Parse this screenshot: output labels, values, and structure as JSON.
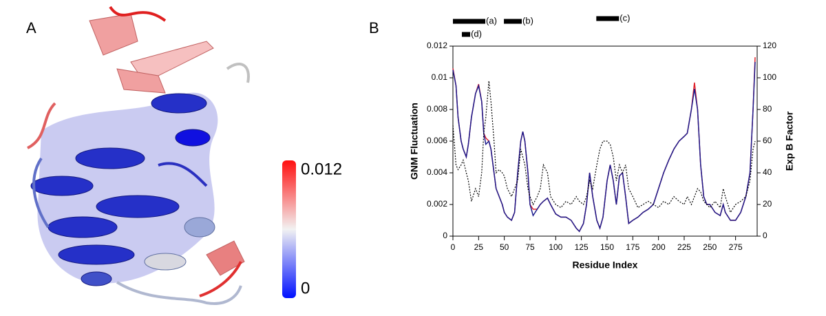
{
  "panel_a": {
    "label": "A",
    "colorbar_ticks": [
      0,
      0.012
    ]
  },
  "chart_data": {
    "type": "line",
    "panel_label": "B",
    "x_label": "Residue Index",
    "y_label": "GNM Fluctuation",
    "y2_label": "Exp B Factor",
    "xlim": [
      0,
      296
    ],
    "xticks": [
      0,
      25,
      50,
      75,
      100,
      125,
      150,
      175,
      200,
      225,
      250,
      275
    ],
    "ylim": [
      0,
      0.012
    ],
    "yticks": [
      0,
      0.002,
      0.004,
      0.006,
      0.008,
      0.01,
      0.012
    ],
    "y2lim": [
      0,
      120
    ],
    "y2ticks": [
      0,
      20,
      40,
      60,
      80,
      100,
      120
    ],
    "x": [
      0,
      3,
      5,
      8,
      10,
      13,
      15,
      18,
      22,
      25,
      28,
      30,
      32,
      35,
      37,
      40,
      42,
      45,
      48,
      50,
      53,
      57,
      60,
      63,
      66,
      68,
      70,
      73,
      75,
      78,
      82,
      85,
      88,
      92,
      95,
      100,
      105,
      110,
      115,
      120,
      123,
      127,
      130,
      133,
      136,
      140,
      143,
      146,
      150,
      153,
      156,
      159,
      162,
      165,
      168,
      171,
      175,
      180,
      185,
      190,
      195,
      200,
      205,
      210,
      215,
      220,
      225,
      228,
      232,
      235,
      238,
      241,
      244,
      247,
      250,
      255,
      260,
      263,
      265,
      270,
      275,
      280,
      285,
      289,
      292,
      294
    ],
    "series": [
      {
        "color": "#e0202a",
        "values": [
          0.0106,
          0.0095,
          0.0075,
          0.006,
          0.0055,
          0.005,
          0.0058,
          0.0075,
          0.009,
          0.0096,
          0.0085,
          0.0065,
          0.0062,
          0.006,
          0.0055,
          0.004,
          0.003,
          0.0025,
          0.002,
          0.0015,
          0.0012,
          0.001,
          0.0015,
          0.004,
          0.006,
          0.0066,
          0.006,
          0.004,
          0.002,
          0.0017,
          0.0017,
          0.002,
          0.0022,
          0.0024,
          0.002,
          0.0014,
          0.0012,
          0.0012,
          0.001,
          0.0005,
          0.0003,
          0.0008,
          0.002,
          0.004,
          0.0025,
          0.001,
          0.0005,
          0.0012,
          0.0035,
          0.0045,
          0.0035,
          0.002,
          0.0038,
          0.004,
          0.0025,
          0.0008,
          0.001,
          0.0012,
          0.0015,
          0.0017,
          0.002,
          0.003,
          0.004,
          0.0048,
          0.0055,
          0.006,
          0.0063,
          0.0065,
          0.008,
          0.0097,
          0.008,
          0.0045,
          0.0025,
          0.002,
          0.002,
          0.0015,
          0.0013,
          0.002,
          0.0015,
          0.001,
          0.001,
          0.0015,
          0.0025,
          0.004,
          0.008,
          0.0113
        ]
      },
      {
        "color": "#1a1a8c",
        "values": [
          0.0105,
          0.0095,
          0.0075,
          0.006,
          0.0055,
          0.005,
          0.0058,
          0.0075,
          0.009,
          0.0095,
          0.0085,
          0.0065,
          0.0058,
          0.006,
          0.0055,
          0.004,
          0.003,
          0.0025,
          0.002,
          0.0015,
          0.0012,
          0.001,
          0.0015,
          0.004,
          0.006,
          0.0066,
          0.006,
          0.004,
          0.002,
          0.0013,
          0.0017,
          0.002,
          0.0022,
          0.0024,
          0.002,
          0.0014,
          0.0012,
          0.0012,
          0.001,
          0.0005,
          0.0003,
          0.0008,
          0.002,
          0.004,
          0.0025,
          0.001,
          0.0005,
          0.0012,
          0.0035,
          0.0045,
          0.0035,
          0.002,
          0.0038,
          0.004,
          0.0025,
          0.0008,
          0.001,
          0.0012,
          0.0015,
          0.0017,
          0.002,
          0.003,
          0.004,
          0.0048,
          0.0055,
          0.006,
          0.0063,
          0.0065,
          0.008,
          0.0093,
          0.008,
          0.0045,
          0.0025,
          0.002,
          0.002,
          0.0015,
          0.0013,
          0.002,
          0.0015,
          0.001,
          0.001,
          0.0015,
          0.0025,
          0.004,
          0.008,
          0.011
        ]
      },
      {
        "color": "#000000",
        "dashed": true,
        "axis": "y2",
        "values": [
          70,
          45,
          42,
          45,
          48,
          40,
          35,
          22,
          30,
          25,
          40,
          65,
          75,
          98,
          85,
          60,
          40,
          42,
          40,
          38,
          30,
          25,
          30,
          35,
          55,
          50,
          45,
          30,
          25,
          20,
          25,
          30,
          45,
          40,
          25,
          20,
          18,
          22,
          20,
          25,
          22,
          20,
          25,
          35,
          30,
          45,
          55,
          60,
          60,
          58,
          50,
          35,
          45,
          40,
          45,
          30,
          25,
          18,
          20,
          22,
          20,
          18,
          22,
          20,
          25,
          22,
          20,
          25,
          20,
          25,
          30,
          28,
          22,
          20,
          18,
          22,
          18,
          30,
          25,
          15,
          20,
          22,
          25,
          35,
          55,
          60
        ]
      }
    ],
    "annotations": [
      {
        "label": "(a)",
        "range": [
          0,
          31.5
        ]
      },
      {
        "label": "(b)",
        "range": [
          49.6,
          67
        ]
      },
      {
        "label": "(c)",
        "range": [
          139.5,
          161.6
        ]
      },
      {
        "label": "(d)",
        "range": [
          8.7,
          16.8
        ]
      }
    ]
  }
}
